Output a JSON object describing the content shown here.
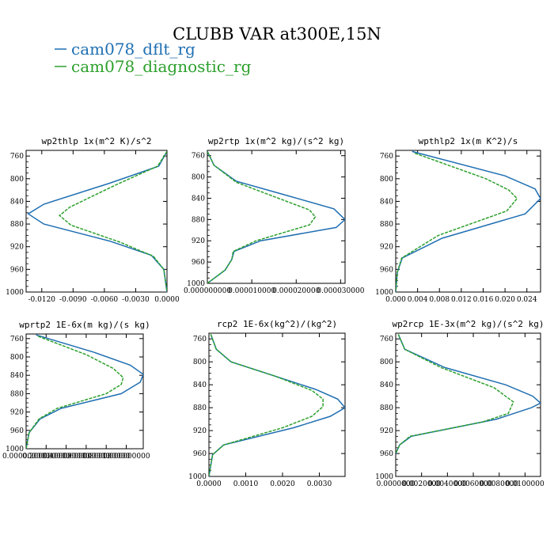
{
  "title": "CLUBB VAR at300E,15N",
  "colors": {
    "dflt": "#1f6fb2",
    "diag": "#2ca02c"
  },
  "legend": [
    {
      "label": "cam078_dflt_rg",
      "color": "#1f6fb2"
    },
    {
      "label": "cam078_diagnostic_rg",
      "color": "#2ca02c"
    }
  ],
  "chart_data": [
    {
      "type": "line",
      "title": "wp2thlp  1x(m^2 K)/s^2",
      "xlim": [
        -0.0135,
        0.0
      ],
      "ylim": [
        1000,
        750
      ],
      "x_ticks": [
        "-0.0120",
        "-0.0090",
        "-0.0060",
        "-0.0030",
        "0.0000"
      ],
      "x_tick_values": [
        -0.012,
        -0.009,
        -0.006,
        -0.003,
        0.0
      ],
      "y_ticks": [
        "760",
        "800",
        "840",
        "880",
        "920",
        "960",
        "1000"
      ],
      "y_tick_values": [
        760,
        800,
        840,
        880,
        920,
        960,
        1000
      ],
      "series": [
        {
          "name": "cam078_dflt_rg",
          "style": "solid",
          "x": [
            0.0,
            -0.0008,
            -0.0055,
            -0.0118,
            -0.0133,
            -0.0118,
            -0.0055,
            -0.0015,
            -0.0003,
            0.0
          ],
          "y": [
            752,
            778,
            808,
            845,
            862,
            880,
            910,
            935,
            960,
            1000
          ]
        },
        {
          "name": "cam078_diagnostic_rg",
          "style": "dashed",
          "x": [
            0.0,
            -0.0009,
            -0.0048,
            -0.0093,
            -0.0103,
            -0.0092,
            -0.0045,
            -0.0013,
            -0.0003,
            0.0
          ],
          "y": [
            752,
            778,
            810,
            850,
            865,
            882,
            912,
            937,
            960,
            1000
          ]
        }
      ]
    },
    {
      "type": "line",
      "title": "wp2rtp  1x(m^2 kg)/(s^2 kg)",
      "xlim": [
        0.0,
        3.1e-05
      ],
      "ylim": [
        1000,
        750
      ],
      "x_ticks": [
        "0.000000000",
        "0.000010000",
        "0.000020000",
        "0.000030000"
      ],
      "x_tick_values": [
        0.0,
        1e-05,
        2e-05,
        3e-05
      ],
      "y_ticks": [
        "760",
        "800",
        "840",
        "880",
        "920",
        "960",
        "1000"
      ],
      "y_tick_values": [
        760,
        800,
        840,
        880,
        920,
        960,
        1000
      ],
      "series": [
        {
          "name": "cam078_dflt_rg",
          "style": "solid",
          "x": [
            0.0,
            1.5e-06,
            6.5e-06,
            1.8e-05,
            2.85e-05,
            3.1e-05,
            2.9e-05,
            1.2e-05,
            6e-06,
            5.5e-06,
            4e-06,
            0.0
          ],
          "y": [
            752,
            778,
            808,
            835,
            860,
            880,
            895,
            920,
            940,
            955,
            975,
            1000
          ]
        },
        {
          "name": "cam078_diagnostic_rg",
          "style": "dashed",
          "x": [
            0.0,
            1.5e-06,
            6.5e-06,
            1.6e-05,
            2.3e-05,
            2.43e-05,
            2.3e-05,
            1.1e-05,
            5.8e-06,
            5.5e-06,
            4e-06,
            0.0
          ],
          "y": [
            752,
            778,
            810,
            840,
            862,
            875,
            890,
            920,
            940,
            955,
            975,
            1000
          ]
        }
      ]
    },
    {
      "type": "line",
      "title": "wpthlp2  1x(m K^2)/s",
      "xlim": [
        0.0,
        0.0265
      ],
      "ylim": [
        1000,
        750
      ],
      "x_ticks": [
        "0.000",
        "0.004",
        "0.008",
        "0.012",
        "0.016",
        "0.020",
        "0.024"
      ],
      "x_tick_values": [
        0.0,
        0.004,
        0.008,
        0.012,
        0.016,
        0.02,
        0.024
      ],
      "y_ticks": [
        "760",
        "800",
        "840",
        "880",
        "920",
        "960",
        "1000"
      ],
      "y_tick_values": [
        760,
        800,
        840,
        880,
        920,
        960,
        1000
      ],
      "series": [
        {
          "name": "cam078_dflt_rg",
          "style": "solid",
          "x": [
            0.003,
            0.02,
            0.0255,
            0.0265,
            0.0237,
            0.0085,
            0.0012,
            0.0003,
            0.0
          ],
          "y": [
            752,
            795,
            818,
            835,
            862,
            905,
            940,
            965,
            1000
          ]
        },
        {
          "name": "cam078_diagnostic_rg",
          "style": "dashed",
          "x": [
            0.0035,
            0.0165,
            0.0207,
            0.0222,
            0.0203,
            0.0078,
            0.0011,
            0.0003,
            0.0
          ],
          "y": [
            755,
            800,
            820,
            835,
            857,
            900,
            940,
            965,
            1000
          ]
        }
      ]
    },
    {
      "type": "line",
      "title": "wprtp2  1E-6x(m kg)/(s kg)",
      "xlim": [
        0.0,
        1.17
      ],
      "ylim": [
        1000,
        750
      ],
      "x_ticks": [
        "0.000000000",
        "0.200000000",
        "0.400000000",
        "0.600000000",
        "0.800000000",
        "1.000000000"
      ],
      "x_tick_values": [
        0.0,
        0.2,
        0.4,
        0.6,
        0.8,
        1.0
      ],
      "y_ticks": [
        "760",
        "800",
        "840",
        "880",
        "920",
        "960",
        "1000"
      ],
      "y_tick_values": [
        760,
        800,
        840,
        880,
        920,
        960,
        1000
      ],
      "series": [
        {
          "name": "cam078_dflt_rg",
          "style": "solid",
          "x": [
            0.1,
            0.68,
            1.04,
            1.17,
            1.14,
            0.95,
            0.35,
            0.14,
            0.03,
            0.0
          ],
          "y": [
            752,
            790,
            818,
            838,
            855,
            880,
            912,
            935,
            965,
            1000
          ]
        },
        {
          "name": "cam078_diagnostic_rg",
          "style": "dashed",
          "x": [
            0.12,
            0.6,
            0.87,
            0.97,
            0.95,
            0.8,
            0.31,
            0.13,
            0.03,
            0.0
          ],
          "y": [
            755,
            795,
            825,
            845,
            860,
            880,
            912,
            935,
            965,
            1000
          ]
        }
      ]
    },
    {
      "type": "line",
      "title": "rcp2  1E-6x(kg^2)/(kg^2)",
      "xlim": [
        0.0,
        0.0037
      ],
      "ylim": [
        1000,
        750
      ],
      "x_ticks": [
        "0.0000",
        "0.0010",
        "0.0020",
        "0.0030"
      ],
      "x_tick_values": [
        0.0,
        0.001,
        0.002,
        0.003
      ],
      "y_ticks": [
        "760",
        "800",
        "840",
        "880",
        "920",
        "960",
        "1000"
      ],
      "y_tick_values": [
        760,
        800,
        840,
        880,
        920,
        960,
        1000
      ],
      "series": [
        {
          "name": "cam078_dflt_rg",
          "style": "solid",
          "x": [
            5e-05,
            0.0002,
            0.0006,
            0.0018,
            0.0029,
            0.0035,
            0.0037,
            0.0033,
            0.0023,
            0.0004,
            0.0001,
            0.0
          ],
          "y": [
            752,
            778,
            800,
            825,
            848,
            865,
            880,
            895,
            915,
            945,
            962,
            1000
          ]
        },
        {
          "name": "cam078_diagnostic_rg",
          "style": "dashed",
          "x": [
            5e-05,
            0.0002,
            0.0006,
            0.0018,
            0.0028,
            0.0031,
            0.0031,
            0.0028,
            0.002,
            0.0004,
            0.0001,
            0.0
          ],
          "y": [
            752,
            778,
            800,
            825,
            850,
            865,
            878,
            895,
            915,
            945,
            962,
            1000
          ]
        }
      ]
    },
    {
      "type": "line",
      "title": "wp2rcp  1E-3x(m^2 kg)/(s^2 kg)",
      "xlim": [
        0.0,
        0.0112
      ],
      "ylim": [
        1000,
        750
      ],
      "x_ticks": [
        "0.0000000",
        "0.0020000",
        "0.0040000",
        "0.0060000",
        "0.0080000",
        "0.0100000"
      ],
      "x_tick_values": [
        0.0,
        0.002,
        0.004,
        0.006,
        0.008,
        0.01
      ],
      "y_ticks": [
        "760",
        "800",
        "840",
        "880",
        "920",
        "960",
        "1000"
      ],
      "y_tick_values": [
        760,
        800,
        840,
        880,
        920,
        960,
        1000
      ],
      "series": [
        {
          "name": "cam078_dflt_rg",
          "style": "solid",
          "x": [
            0.0002,
            0.0007,
            0.0038,
            0.0085,
            0.0106,
            0.0112,
            0.0105,
            0.0078,
            0.0012,
            0.0003,
            0.0
          ],
          "y": [
            752,
            778,
            810,
            840,
            860,
            872,
            880,
            900,
            930,
            945,
            960
          ]
        },
        {
          "name": "cam078_diagnostic_rg",
          "style": "dashed",
          "x": [
            0.0002,
            0.0007,
            0.0035,
            0.0076,
            0.0091,
            0.0087,
            0.0067,
            0.0011,
            0.0003,
            0.0
          ],
          "y": [
            752,
            778,
            810,
            845,
            870,
            890,
            905,
            930,
            945,
            960
          ]
        }
      ]
    }
  ]
}
